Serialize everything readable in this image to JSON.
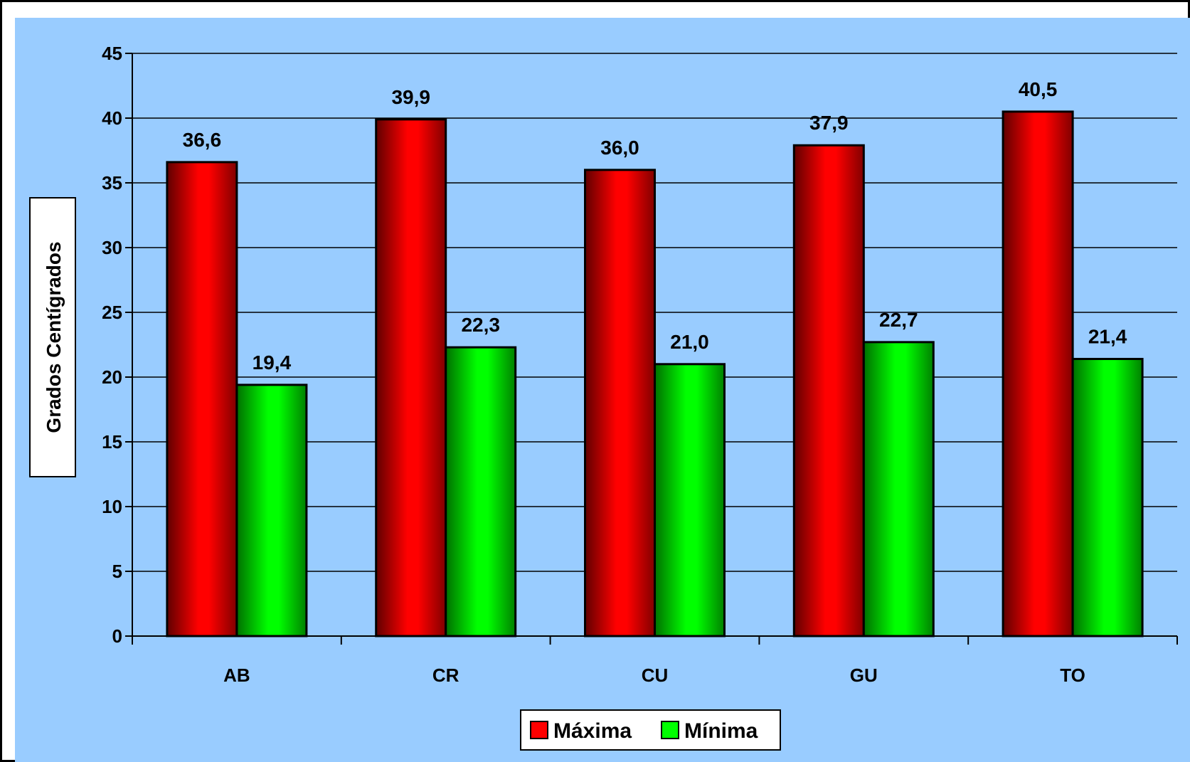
{
  "chart_data": {
    "type": "bar",
    "title": "",
    "xlabel": "",
    "ylabel": "Grados Centígrados",
    "categories": [
      "AB",
      "CR",
      "CU",
      "GU",
      "TO"
    ],
    "series": [
      {
        "name": "Máxima",
        "values": [
          36.6,
          39.9,
          36.0,
          37.9,
          40.5
        ],
        "labels": [
          "36,6",
          "39,9",
          "36,0",
          "37,9",
          "40,5"
        ],
        "color": "#ff0000"
      },
      {
        "name": "Mínima",
        "values": [
          19.4,
          22.3,
          21.0,
          22.7,
          21.4
        ],
        "labels": [
          "19,4",
          "22,3",
          "21,0",
          "22,7",
          "21,4"
        ],
        "color": "#00ff00"
      }
    ],
    "ylim": [
      0,
      45
    ],
    "yticks": [
      0,
      5,
      10,
      15,
      20,
      25,
      30,
      35,
      40,
      45
    ],
    "grid": true,
    "legend_position": "bottom",
    "background_color": "#99ccff"
  }
}
